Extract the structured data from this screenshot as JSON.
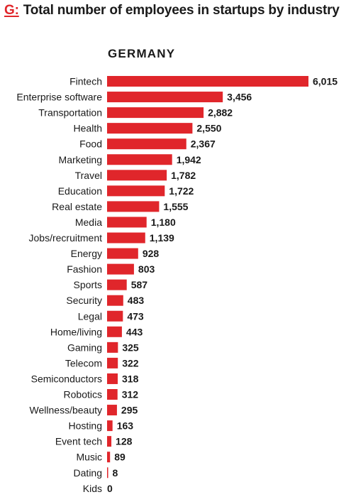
{
  "title": {
    "letter": "G:",
    "text": "Total number of employees in startups by industry"
  },
  "colors": {
    "accent": "#e0262b",
    "text": "#1a1a1a"
  },
  "chart_data": {
    "type": "bar",
    "orientation": "horizontal",
    "title": "Total number of employees in startups by industry",
    "subtitle": "GERMANY",
    "xlabel": "",
    "ylabel": "",
    "grid": false,
    "legend": "none",
    "xlim": [
      0,
      6015
    ],
    "categories": [
      "Fintech",
      "Enterprise software",
      "Transportation",
      "Health",
      "Food",
      "Marketing",
      "Travel",
      "Education",
      "Real estate",
      "Media",
      "Jobs/recruitment",
      "Energy",
      "Fashion",
      "Sports",
      "Security",
      "Legal",
      "Home/living",
      "Gaming",
      "Telecom",
      "Semiconductors",
      "Robotics",
      "Wellness/beauty",
      "Hosting",
      "Event tech",
      "Music",
      "Dating",
      "Kids"
    ],
    "values": [
      6015,
      3456,
      2882,
      2550,
      2367,
      1942,
      1782,
      1722,
      1555,
      1180,
      1139,
      928,
      803,
      587,
      483,
      473,
      443,
      325,
      322,
      318,
      312,
      295,
      163,
      128,
      89,
      8,
      0
    ],
    "value_labels": [
      "6,015",
      "3,456",
      "2,882",
      "2,550",
      "2,367",
      "1,942",
      "1,782",
      "1,722",
      "1,555",
      "1,180",
      "1,139",
      "928",
      "803",
      "587",
      "483",
      "473",
      "443",
      "325",
      "322",
      "318",
      "312",
      "295",
      "163",
      "128",
      "89",
      "8",
      "0"
    ]
  }
}
